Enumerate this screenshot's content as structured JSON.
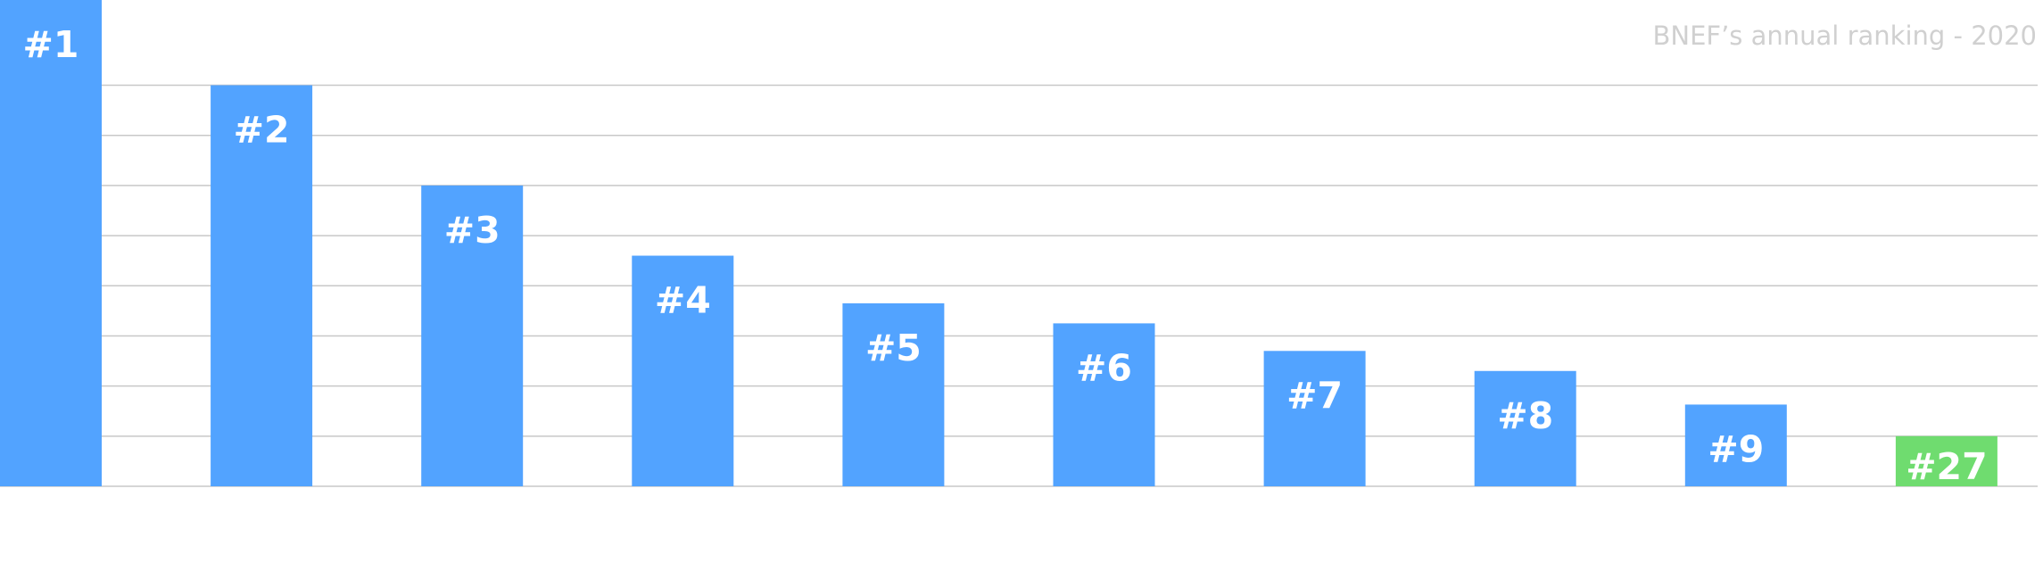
{
  "chart_data": {
    "type": "bar",
    "title": "BNEF’s annual ranking - 2020",
    "xlabel": "",
    "ylabel": "",
    "categories": [
      "#1",
      "#2",
      "#3",
      "#4",
      "#5",
      "#6",
      "#7",
      "#8",
      "#9",
      "#27"
    ],
    "values": [
      9.7,
      8.0,
      6.0,
      4.6,
      3.65,
      3.25,
      2.7,
      2.3,
      1.63,
      1.0
    ],
    "data_labels": [
      "#1",
      "#2",
      "#3",
      "#4",
      "#5",
      "#6",
      "#7",
      "#8",
      "#9",
      "#27"
    ],
    "ylim": [
      0,
      9.7
    ],
    "grid": true,
    "gridline_values": [
      1,
      2,
      3,
      4,
      5,
      6,
      7,
      8
    ],
    "bar_color": "#52a3ff",
    "highlight_color": "#6fdc6f",
    "highlight_category": "#27",
    "label_color": "#ffffff",
    "title_color": "#d0d0d0",
    "gridline_color": "#c8c8c8"
  }
}
